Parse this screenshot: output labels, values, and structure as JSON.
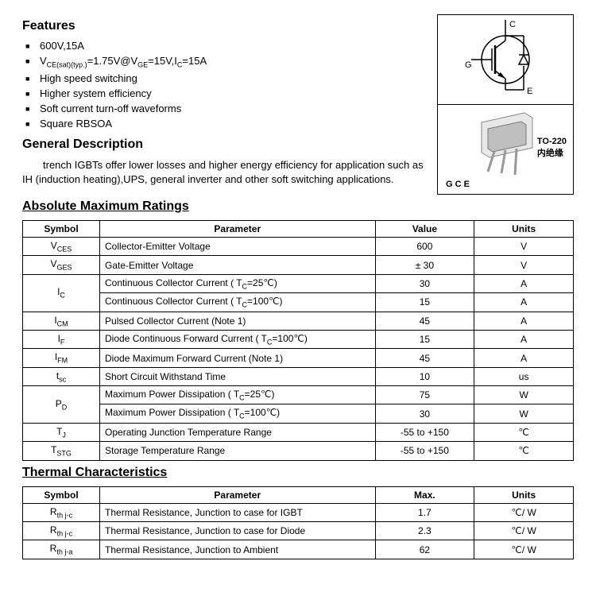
{
  "features_heading": "Features",
  "features": [
    "600V,15A",
    "V_CE(sat)(typ.)=1.75V@V_GE=15V,I_C=15A",
    "High speed switching",
    "Higher system efficiency",
    "Soft current turn-off waveforms",
    "Square RBSOA"
  ],
  "gendesc_heading": "General Description",
  "gendesc_body": "trench IGBTs offer lower losses and higher energy efficiency for application such as IH (induction heating),UPS, general inverter and other soft switching applications.",
  "symbol_labels": {
    "c": "C",
    "g": "G",
    "e": "E"
  },
  "package": {
    "pins": "G C E",
    "name": "TO-220",
    "sub": "内绝缘"
  },
  "abs_heading": "Absolute Maximum Ratings",
  "abs_table": {
    "headers": [
      "Symbol",
      "Parameter",
      "Value",
      "Units"
    ],
    "rows": [
      {
        "sym": "V_CES",
        "param": "Collector-Emitter Voltage",
        "val": "600",
        "unit": "V"
      },
      {
        "sym": "V_GES",
        "param": "Gate-Emitter Voltage",
        "val": "± 30",
        "unit": "V"
      },
      {
        "sym": "I_C",
        "rowspan": 2,
        "param": "Continuous Collector Current ( T_C=25℃)",
        "val": "30",
        "unit": "A"
      },
      {
        "param": "Continuous Collector Current  ( T_C=100℃)",
        "val": "15",
        "unit": "A"
      },
      {
        "sym": "I_CM",
        "param": "Pulsed Collector Current (Note 1)",
        "val": "45",
        "unit": "A"
      },
      {
        "sym": "I_F",
        "param": "Diode Continuous Forward Current ( T_C=100℃)",
        "val": "15",
        "unit": "A"
      },
      {
        "sym": "I_FM",
        "param": "Diode Maximum Forward Current (Note 1)",
        "val": "45",
        "unit": "A"
      },
      {
        "sym": "t_sc",
        "param": "Short Circuit Withstand Time",
        "val": "10",
        "unit": "us"
      },
      {
        "sym": "P_D",
        "rowspan": 2,
        "param": "Maximum Power Dissipation ( T_C=25℃)",
        "val": "75",
        "unit": "W"
      },
      {
        "param": "Maximum Power Dissipation ( T_C=100℃)",
        "val": "30",
        "unit": "W"
      },
      {
        "sym": "T_J",
        "param": "Operating Junction Temperature Range",
        "val": "-55 to +150",
        "unit": "℃"
      },
      {
        "sym": "T_STG",
        "param": "Storage Temperature Range",
        "val": "-55 to +150",
        "unit": "℃"
      }
    ]
  },
  "therm_heading": "Thermal Characteristics",
  "therm_table": {
    "headers": [
      "Symbol",
      "Parameter",
      "Max.",
      "Units"
    ],
    "rows": [
      {
        "sym": "R_th j-c",
        "param": "Thermal Resistance, Junction to case for IGBT",
        "val": "1.7",
        "unit": "℃/ W"
      },
      {
        "sym": "R_th j-c",
        "param": "Thermal Resistance, Junction to case for Diode",
        "val": "2.3",
        "unit": "℃/ W"
      },
      {
        "sym": "R_th j-a",
        "param": "Thermal Resistance, Junction to Ambient",
        "val": "62",
        "unit": "℃/ W"
      }
    ]
  },
  "col_widths": {
    "symbol": "14%",
    "param": "50%",
    "value": "18%",
    "units": "18%"
  }
}
